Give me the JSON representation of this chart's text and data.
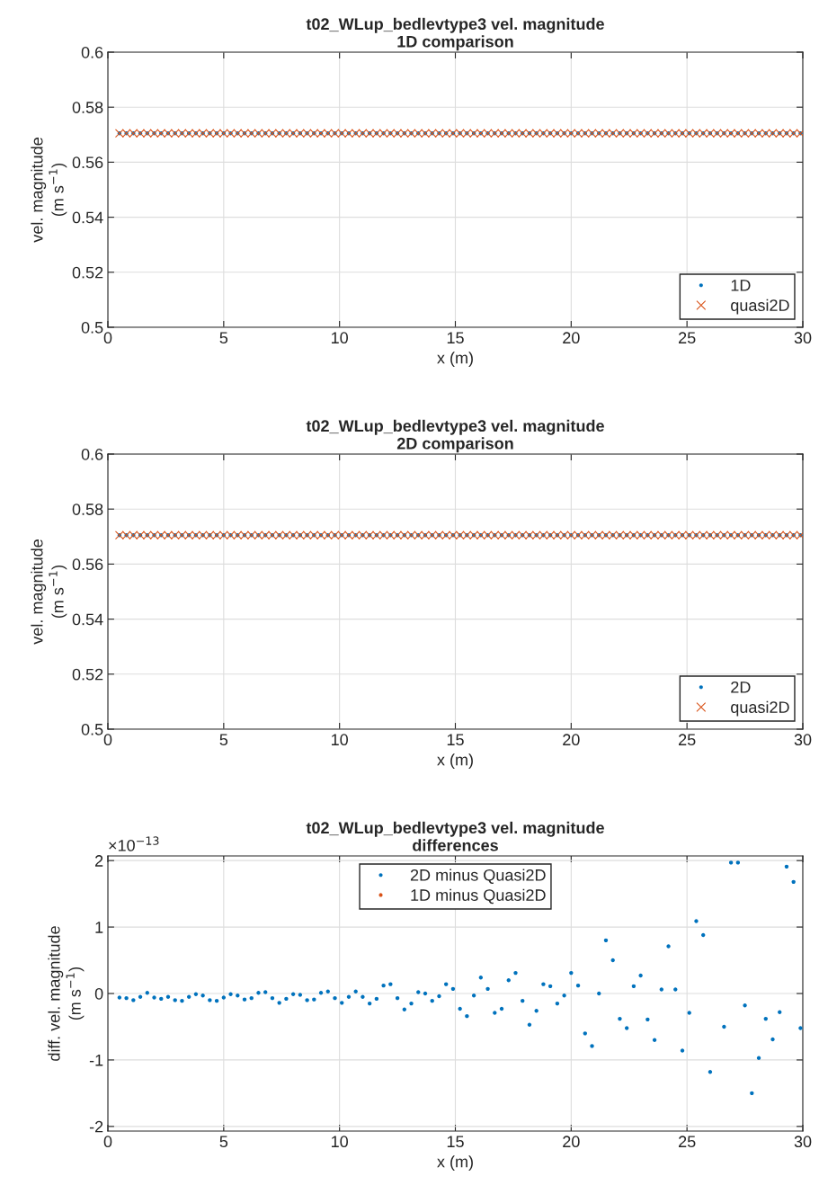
{
  "chart_data": [
    {
      "type": "scatter",
      "title": "t02_WLup_bedlevtype3 vel. magnitude\n1D comparison",
      "xlabel": "x (m)",
      "ylabel": "vel. magnitude\n(m s$^{−1}$)",
      "x": [
        0.5,
        0.8,
        1.1,
        1.4,
        1.7,
        2.0,
        2.3,
        2.6,
        2.9,
        3.2,
        3.5,
        3.8,
        4.1,
        4.4,
        4.7,
        5.0,
        5.3,
        5.6,
        5.9,
        6.2,
        6.5,
        6.8,
        7.1,
        7.4,
        7.7,
        8.0,
        8.3,
        8.6,
        8.9,
        9.2,
        9.5,
        9.8,
        10.1,
        10.4,
        10.7,
        11.0,
        11.3,
        11.6,
        11.9,
        12.2,
        12.5,
        12.8,
        13.1,
        13.4,
        13.7,
        14.0,
        14.3,
        14.6,
        14.9,
        15.2,
        15.5,
        15.8,
        16.1,
        16.4,
        16.7,
        17.0,
        17.3,
        17.6,
        17.9,
        18.2,
        18.5,
        18.8,
        19.1,
        19.4,
        19.7,
        20.0,
        20.3,
        20.6,
        20.9,
        21.2,
        21.5,
        21.8,
        22.1,
        22.4,
        22.7,
        23.0,
        23.3,
        23.6,
        23.9,
        24.2,
        24.5,
        24.8,
        25.1,
        25.4,
        25.7,
        26.0,
        26.3,
        26.6,
        26.9,
        27.2,
        27.5,
        27.8,
        28.1,
        28.4,
        28.7,
        29.0,
        29.3,
        29.6,
        29.9
      ],
      "series": [
        {
          "name": "1D",
          "color": "#0072bd",
          "marker": "circle",
          "values": [
            0.5705,
            0.5705,
            0.5705,
            0.5705,
            0.5705,
            0.5705,
            0.5705,
            0.5705,
            0.5705,
            0.5705,
            0.5705,
            0.5705,
            0.5705,
            0.5705,
            0.5705,
            0.5705,
            0.5705,
            0.5705,
            0.5705,
            0.5705,
            0.5705,
            0.5705,
            0.5705,
            0.5705,
            0.5705,
            0.5705,
            0.5705,
            0.5705,
            0.5705,
            0.5705,
            0.5705,
            0.5705,
            0.5705,
            0.5705,
            0.5705,
            0.5705,
            0.5705,
            0.5705,
            0.5705,
            0.5705,
            0.5705,
            0.5705,
            0.5705,
            0.5705,
            0.5705,
            0.5705,
            0.5705,
            0.5705,
            0.5705,
            0.5705,
            0.5705,
            0.5705,
            0.5705,
            0.5705,
            0.5705,
            0.5705,
            0.5705,
            0.5705,
            0.5705,
            0.5705,
            0.5705,
            0.5705,
            0.5705,
            0.5705,
            0.5705,
            0.5705,
            0.5705,
            0.5705,
            0.5705,
            0.5705,
            0.5705,
            0.5705,
            0.5705,
            0.5705,
            0.5705,
            0.5705,
            0.5705,
            0.5705,
            0.5705,
            0.5705,
            0.5705,
            0.5705,
            0.5705,
            0.5705,
            0.5705,
            0.5705,
            0.5705,
            0.5705,
            0.5705,
            0.5705,
            0.5705,
            0.5705,
            0.5705,
            0.5705,
            0.5705,
            0.5705,
            0.5705,
            0.5705,
            0.5705
          ]
        },
        {
          "name": "quasi2D",
          "color": "#d95319",
          "marker": "cross",
          "values": [
            0.5705,
            0.5705,
            0.5705,
            0.5705,
            0.5705,
            0.5705,
            0.5705,
            0.5705,
            0.5705,
            0.5705,
            0.5705,
            0.5705,
            0.5705,
            0.5705,
            0.5705,
            0.5705,
            0.5705,
            0.5705,
            0.5705,
            0.5705,
            0.5705,
            0.5705,
            0.5705,
            0.5705,
            0.5705,
            0.5705,
            0.5705,
            0.5705,
            0.5705,
            0.5705,
            0.5705,
            0.5705,
            0.5705,
            0.5705,
            0.5705,
            0.5705,
            0.5705,
            0.5705,
            0.5705,
            0.5705,
            0.5705,
            0.5705,
            0.5705,
            0.5705,
            0.5705,
            0.5705,
            0.5705,
            0.5705,
            0.5705,
            0.5705,
            0.5705,
            0.5705,
            0.5705,
            0.5705,
            0.5705,
            0.5705,
            0.5705,
            0.5705,
            0.5705,
            0.5705,
            0.5705,
            0.5705,
            0.5705,
            0.5705,
            0.5705,
            0.5705,
            0.5705,
            0.5705,
            0.5705,
            0.5705,
            0.5705,
            0.5705,
            0.5705,
            0.5705,
            0.5705,
            0.5705,
            0.5705,
            0.5705,
            0.5705,
            0.5705,
            0.5705,
            0.5705,
            0.5705,
            0.5705,
            0.5705,
            0.5705,
            0.5705,
            0.5705,
            0.5705,
            0.5705,
            0.5705,
            0.5705,
            0.5705,
            0.5705,
            0.5705,
            0.5705,
            0.5705,
            0.5705,
            0.5705
          ]
        }
      ],
      "xlim": [
        0,
        30
      ],
      "xticks": [
        0,
        5,
        10,
        15,
        20,
        25,
        30
      ],
      "ylim": [
        0.5,
        0.6
      ],
      "yticks": [
        0.5,
        0.52,
        0.54,
        0.56,
        0.58,
        0.6
      ],
      "grid": true,
      "legend": "bottom right"
    },
    {
      "type": "scatter",
      "title": "t02_WLup_bedlevtype3 vel. magnitude\n2D comparison",
      "xlabel": "x (m)",
      "ylabel": "vel. magnitude\n(m s$^{−1}$)",
      "x": [
        0.5,
        0.8,
        1.1,
        1.4,
        1.7,
        2.0,
        2.3,
        2.6,
        2.9,
        3.2,
        3.5,
        3.8,
        4.1,
        4.4,
        4.7,
        5.0,
        5.3,
        5.6,
        5.9,
        6.2,
        6.5,
        6.8,
        7.1,
        7.4,
        7.7,
        8.0,
        8.3,
        8.6,
        8.9,
        9.2,
        9.5,
        9.8,
        10.1,
        10.4,
        10.7,
        11.0,
        11.3,
        11.6,
        11.9,
        12.2,
        12.5,
        12.8,
        13.1,
        13.4,
        13.7,
        14.0,
        14.3,
        14.6,
        14.9,
        15.2,
        15.5,
        15.8,
        16.1,
        16.4,
        16.7,
        17.0,
        17.3,
        17.6,
        17.9,
        18.2,
        18.5,
        18.8,
        19.1,
        19.4,
        19.7,
        20.0,
        20.3,
        20.6,
        20.9,
        21.2,
        21.5,
        21.8,
        22.1,
        22.4,
        22.7,
        23.0,
        23.3,
        23.6,
        23.9,
        24.2,
        24.5,
        24.8,
        25.1,
        25.4,
        25.7,
        26.0,
        26.3,
        26.6,
        26.9,
        27.2,
        27.5,
        27.8,
        28.1,
        28.4,
        28.7,
        29.0,
        29.3,
        29.6,
        29.9
      ],
      "series": [
        {
          "name": "2D",
          "color": "#0072bd",
          "marker": "circle",
          "values": [
            0.5705,
            0.5705,
            0.5705,
            0.5705,
            0.5705,
            0.5705,
            0.5705,
            0.5705,
            0.5705,
            0.5705,
            0.5705,
            0.5705,
            0.5705,
            0.5705,
            0.5705,
            0.5705,
            0.5705,
            0.5705,
            0.5705,
            0.5705,
            0.5705,
            0.5705,
            0.5705,
            0.5705,
            0.5705,
            0.5705,
            0.5705,
            0.5705,
            0.5705,
            0.5705,
            0.5705,
            0.5705,
            0.5705,
            0.5705,
            0.5705,
            0.5705,
            0.5705,
            0.5705,
            0.5705,
            0.5705,
            0.5705,
            0.5705,
            0.5705,
            0.5705,
            0.5705,
            0.5705,
            0.5705,
            0.5705,
            0.5705,
            0.5705,
            0.5705,
            0.5705,
            0.5705,
            0.5705,
            0.5705,
            0.5705,
            0.5705,
            0.5705,
            0.5705,
            0.5705,
            0.5705,
            0.5705,
            0.5705,
            0.5705,
            0.5705,
            0.5705,
            0.5705,
            0.5705,
            0.5705,
            0.5705,
            0.5705,
            0.5705,
            0.5705,
            0.5705,
            0.5705,
            0.5705,
            0.5705,
            0.5705,
            0.5705,
            0.5705,
            0.5705,
            0.5705,
            0.5705,
            0.5705,
            0.5705,
            0.5705,
            0.5705,
            0.5705,
            0.5705,
            0.5705,
            0.5705,
            0.5705,
            0.5705,
            0.5705,
            0.5705,
            0.5705,
            0.5705,
            0.5705,
            0.5705
          ]
        },
        {
          "name": "quasi2D",
          "color": "#d95319",
          "marker": "cross",
          "values": [
            0.5705,
            0.5705,
            0.5705,
            0.5705,
            0.5705,
            0.5705,
            0.5705,
            0.5705,
            0.5705,
            0.5705,
            0.5705,
            0.5705,
            0.5705,
            0.5705,
            0.5705,
            0.5705,
            0.5705,
            0.5705,
            0.5705,
            0.5705,
            0.5705,
            0.5705,
            0.5705,
            0.5705,
            0.5705,
            0.5705,
            0.5705,
            0.5705,
            0.5705,
            0.5705,
            0.5705,
            0.5705,
            0.5705,
            0.5705,
            0.5705,
            0.5705,
            0.5705,
            0.5705,
            0.5705,
            0.5705,
            0.5705,
            0.5705,
            0.5705,
            0.5705,
            0.5705,
            0.5705,
            0.5705,
            0.5705,
            0.5705,
            0.5705,
            0.5705,
            0.5705,
            0.5705,
            0.5705,
            0.5705,
            0.5705,
            0.5705,
            0.5705,
            0.5705,
            0.5705,
            0.5705,
            0.5705,
            0.5705,
            0.5705,
            0.5705,
            0.5705,
            0.5705,
            0.5705,
            0.5705,
            0.5705,
            0.5705,
            0.5705,
            0.5705,
            0.5705,
            0.5705,
            0.5705,
            0.5705,
            0.5705,
            0.5705,
            0.5705,
            0.5705,
            0.5705,
            0.5705,
            0.5705,
            0.5705,
            0.5705,
            0.5705,
            0.5705,
            0.5705,
            0.5705,
            0.5705,
            0.5705,
            0.5705,
            0.5705,
            0.5705,
            0.5705,
            0.5705,
            0.5705,
            0.5705
          ]
        }
      ],
      "xlim": [
        0,
        30
      ],
      "xticks": [
        0,
        5,
        10,
        15,
        20,
        25,
        30
      ],
      "ylim": [
        0.5,
        0.6
      ],
      "yticks": [
        0.5,
        0.52,
        0.54,
        0.56,
        0.58,
        0.6
      ],
      "grid": true,
      "legend": "bottom right"
    },
    {
      "type": "scatter",
      "title": "t02_WLup_bedlevtype3 vel. magnitude\ndifferences",
      "xlabel": "x (m)",
      "ylabel": "diff. vel. magnitude\n(m s$^{−1}$)",
      "annotations": [
        "×10$^{−13}$"
      ],
      "x": [
        0.5,
        0.8,
        1.1,
        1.4,
        1.7,
        2.0,
        2.3,
        2.6,
        2.9,
        3.2,
        3.5,
        3.8,
        4.1,
        4.4,
        4.7,
        5.0,
        5.3,
        5.6,
        5.9,
        6.2,
        6.5,
        6.8,
        7.1,
        7.4,
        7.7,
        8.0,
        8.3,
        8.6,
        8.9,
        9.2,
        9.5,
        9.8,
        10.1,
        10.4,
        10.7,
        11.0,
        11.3,
        11.6,
        11.9,
        12.2,
        12.5,
        12.8,
        13.1,
        13.4,
        13.7,
        14.0,
        14.3,
        14.6,
        14.9,
        15.2,
        15.5,
        15.8,
        16.1,
        16.4,
        16.7,
        17.0,
        17.3,
        17.6,
        17.9,
        18.2,
        18.5,
        18.8,
        19.1,
        19.4,
        19.7,
        20.0,
        20.3,
        20.6,
        20.9,
        21.2,
        21.5,
        21.8,
        22.1,
        22.4,
        22.7,
        23.0,
        23.3,
        23.6,
        23.9,
        24.2,
        24.5,
        24.8,
        25.1,
        25.4,
        25.7,
        26.0,
        26.3,
        26.6,
        26.9,
        27.2,
        27.5,
        27.8,
        28.1,
        28.4,
        28.7,
        29.0,
        29.3,
        29.6,
        29.9
      ],
      "series": [
        {
          "name": "2D minus Quasi2D",
          "color": "#0072bd",
          "marker": "circle",
          "values": [
            -0.06,
            -0.07,
            -0.1,
            -0.05,
            0.01,
            -0.06,
            -0.08,
            -0.05,
            -0.1,
            -0.11,
            -0.05,
            -0.01,
            -0.03,
            -0.1,
            -0.11,
            -0.06,
            -0.01,
            -0.03,
            -0.09,
            -0.07,
            0.01,
            0.02,
            -0.07,
            -0.14,
            -0.08,
            -0.01,
            -0.02,
            -0.1,
            -0.09,
            0.01,
            0.03,
            -0.07,
            -0.14,
            -0.05,
            0.03,
            -0.05,
            -0.15,
            -0.08,
            0.12,
            0.14,
            -0.07,
            -0.24,
            -0.15,
            0.02,
            0.0,
            -0.11,
            -0.04,
            0.14,
            0.07,
            -0.23,
            -0.34,
            -0.03,
            0.24,
            0.07,
            -0.29,
            -0.23,
            0.2,
            0.31,
            -0.11,
            -0.47,
            -0.26,
            0.14,
            0.11,
            -0.15,
            -0.03,
            0.31,
            0.12,
            -0.6,
            -0.79,
            0.0,
            0.8,
            0.5,
            -0.38,
            -0.52,
            0.11,
            0.27,
            -0.39,
            -0.7,
            0.06,
            0.71,
            0.06,
            -0.86,
            -0.29,
            1.09,
            0.88,
            -1.18,
            null,
            -0.5,
            1.97,
            1.97,
            -0.18,
            -1.5,
            -0.97,
            -0.38,
            -0.69,
            -0.28,
            1.91,
            1.68,
            -0.52
          ]
        },
        {
          "name": "1D minus Quasi2D",
          "color": "#d95319",
          "marker": "circle",
          "values": [
            null,
            null,
            null,
            null,
            null,
            null,
            null,
            null,
            null,
            null,
            null,
            null,
            null,
            null,
            null,
            null,
            null,
            null,
            null,
            null,
            null,
            null,
            null,
            null,
            null,
            null,
            null,
            null,
            null,
            null,
            null,
            null,
            null,
            null,
            null,
            null,
            null,
            null,
            null,
            null,
            null,
            null,
            null,
            null,
            null,
            null,
            null,
            null,
            null,
            null,
            null,
            null,
            null,
            null,
            null,
            null,
            null,
            null,
            null,
            null,
            null,
            null,
            null,
            null,
            null,
            null,
            null,
            null,
            null,
            null,
            null,
            null,
            null,
            null,
            null,
            null,
            null,
            null,
            null,
            null,
            null,
            null,
            null,
            null,
            null,
            null,
            null,
            null,
            null,
            null,
            null,
            null,
            null,
            null,
            null,
            null,
            null,
            null,
            null
          ]
        }
      ],
      "xlim": [
        0,
        30
      ],
      "xticks": [
        0,
        5,
        10,
        15,
        20,
        25,
        30
      ],
      "ylim": [
        -2.07,
        2.07
      ],
      "yticks": [
        -2,
        -1,
        0,
        1,
        2
      ],
      "grid": true,
      "legend": "top"
    }
  ]
}
